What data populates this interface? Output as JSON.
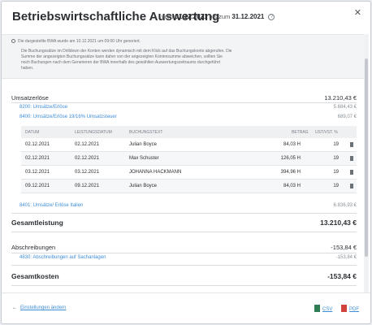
{
  "header": {
    "title": "Betriebswirtschaftliche Auswertung",
    "vom": "vom",
    "date_from": "01.12.2021",
    "bis": "bis zum",
    "date_to": "31.12.2021",
    "help_glyph": "?",
    "close_glyph": "✕"
  },
  "info": {
    "generated": "Die dargestellte BWA wurde am 10.12.2021 um 09:00 Uhr generiert.",
    "para": "Die Buchungssätze im Drilldown der Konten werden dynamisch mit dem Klick auf das Buchungskonto abgerufen. Die Summe der angezeigten Buchungssätze kann daher von der angezeigten Kontensumme abweichen, sollten Sie noch Buchungen nach dem Generieren der BWA innerhalb des gewählten Auswertungszeitraums durchgeführt haben."
  },
  "report": {
    "umsatz_label": "Umsatzerlöse",
    "umsatz_value": "13.210,43 €",
    "acc_8200_label": "8200: Umsätze/Erlöse",
    "acc_8200_value": "5.684,43 €",
    "acc_8400_label": "8400: Umsätze/Erlöse 19/16% Umsatzsteuer",
    "acc_8400_value": "689,07 €",
    "table_headers": {
      "datum": "DATUM",
      "leistungsdatum": "LEISTUNGSDATUM",
      "buchungstext": "BUCHUNGSTEXT",
      "betrag": "BETRAG",
      "ust": "UST/VST. %"
    },
    "rows": [
      {
        "datum": "02.12.2021",
        "leistungsdatum": "02.12.2021",
        "text": "Julian Boyce",
        "betrag": "84,03 H",
        "ust": "19"
      },
      {
        "datum": "02.12.2021",
        "leistungsdatum": "02.12.2021",
        "text": "Max Schuster",
        "betrag": "126,05 H",
        "ust": "19"
      },
      {
        "datum": "03.12.2021",
        "leistungsdatum": "03.12.2021",
        "text": "JOHANNA HACKMANN",
        "betrag": "394,96 H",
        "ust": "19"
      },
      {
        "datum": "09.12.2021",
        "leistungsdatum": "09.12.2021",
        "text": "Julian Boyce",
        "betrag": "84,03 H",
        "ust": "19"
      }
    ],
    "acc_8401_label": "8401: Umsätze/ Erlöse Italien",
    "acc_8401_value": "6.836,93 €",
    "gesamtleistung_label": "Gesamtleistung",
    "gesamtleistung_value": "13.210,43 €",
    "abschreibungen_label": "Abschreibungen",
    "abschreibungen_value": "-153,84 €",
    "acc_4830_label": "4830: Abschreibungen auf Sachanlagen",
    "acc_4830_value": "-153,84 €",
    "gesamtkosten_label": "Gesamtkosten",
    "gesamtkosten_value": "-153,84 €"
  },
  "footer": {
    "back_arrow": "←",
    "back_label": "Einstellungen ändern",
    "csv_label": "CSV",
    "pdf_label": "PDF"
  },
  "icons": {
    "close": "close-icon",
    "help": "help-icon",
    "info": "info-icon",
    "document": "document-icon",
    "csv": "csv-file-icon",
    "pdf": "pdf-file-icon"
  },
  "colors": {
    "link": "#3f8ed8",
    "csv": "#2e7d55",
    "pdf": "#d0433a"
  }
}
